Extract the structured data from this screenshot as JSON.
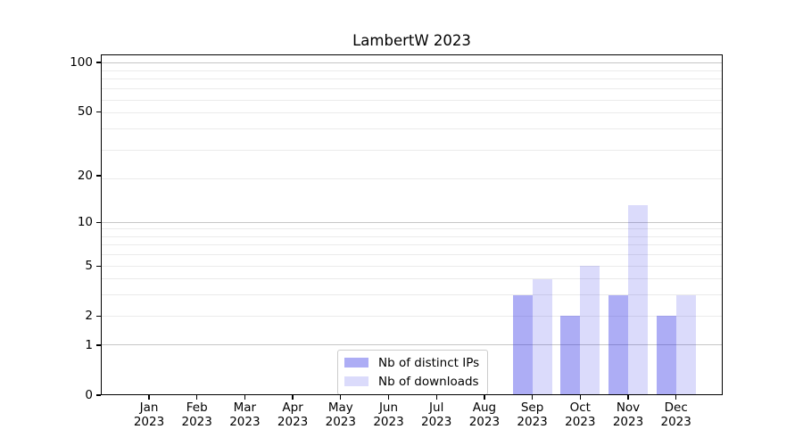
{
  "figure": {
    "background": "#ffffff"
  },
  "chart_data": {
    "type": "bar",
    "title": "LambertW 2023",
    "x_tick_months": [
      "Jan",
      "Feb",
      "Mar",
      "Apr",
      "May",
      "Jun",
      "Jul",
      "Aug",
      "Sep",
      "Oct",
      "Nov",
      "Dec"
    ],
    "x_tick_year": "2023",
    "y_ticks": [
      0,
      1,
      2,
      5,
      10,
      20,
      50,
      100
    ],
    "y_scale": "log10(1+x)",
    "ylim": [
      0,
      112
    ],
    "grid": "on",
    "series": [
      {
        "name": "Nb of distinct IPs",
        "color": "rgba(40,40,230,0.38)",
        "values": [
          0,
          0,
          0,
          0,
          0,
          0,
          0,
          0,
          3,
          2,
          3,
          2
        ]
      },
      {
        "name": "Nb of downloads",
        "color": "rgba(40,40,230,0.17)",
        "values": [
          0,
          0,
          0,
          0,
          0,
          0,
          0,
          0,
          4,
          5,
          13,
          3
        ]
      }
    ],
    "legend_position": "lower center inside",
    "colors": {
      "minor_grid": "#ebebeb",
      "major_grid": "#c6c6c6",
      "spine": "#000000",
      "legend_border": "#cccccc",
      "text": "#000000"
    }
  }
}
